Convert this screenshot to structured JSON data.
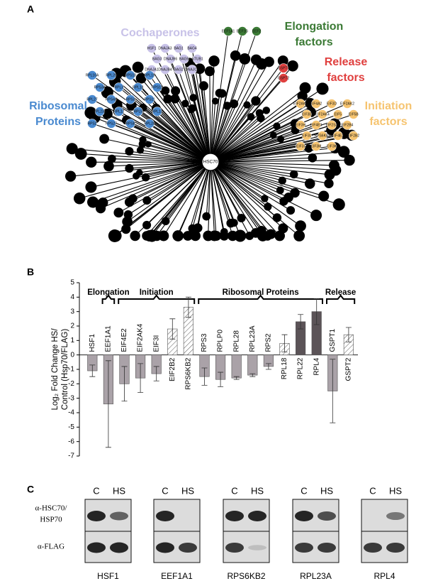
{
  "panel_a": {
    "letter": "A",
    "hub": "HSC70",
    "groups": [
      {
        "title": [
          "Cochaperones"
        ],
        "color": "#c8c2e8",
        "nodes": [
          "HSF1",
          "DNAJA3",
          "BAG1",
          "BAG4",
          "BAG3",
          "DNAJB6",
          "BAG5",
          "STUB1",
          "DNAJA1",
          "DNAJB4",
          "BAG2",
          "DNAJC7"
        ]
      },
      {
        "title": [
          "Elongation",
          "factors"
        ],
        "color": "#3b7a35",
        "nodes": [
          "EEF1A1",
          "EEF1G",
          "EEF2"
        ]
      },
      {
        "title": [
          "Release",
          "factors"
        ],
        "color": "#e0403f",
        "nodes": [
          "GSPT1",
          "GSPT2"
        ]
      },
      {
        "title": [
          "Initiation",
          "factors"
        ],
        "color": "#f6c470",
        "nodes": [
          "EIF2AK1",
          "EIF4A2",
          "EIF3D",
          "EIF2AK2",
          "EIF3E",
          "EIF2AK4",
          "EIF5",
          "EIF5B",
          "EIF3H",
          "EIF4E3",
          "EIF2S3",
          "EIF2B4",
          "EIF3L",
          "RPS6KB2",
          "EIF4E2",
          "EIF2B2",
          "EIF3I",
          "EIF3M",
          "EIF3K"
        ]
      },
      {
        "title": [
          "Ribosomal",
          "Proteins"
        ],
        "color": "#4a8ad0",
        "nodes": [
          "RPL10A",
          "RPL26",
          "RPS18",
          "RPL19",
          "RPS3A",
          "RPL3",
          "RPL18",
          "RPS15",
          "RPL27",
          "RPS4X",
          "RPS3",
          "RPS11",
          "RPL23A",
          "RPL12",
          "RPL5",
          "RPL13",
          "RPS2",
          "RPS27",
          "RPS8",
          "RPL28"
        ]
      }
    ]
  },
  "chart_data": {
    "type": "bar",
    "letter": "B",
    "y_label": [
      "Log₂ Fold Change HS/",
      "Control (Hsp70/FLAG)"
    ],
    "groups": [
      "Elongation",
      "Initiation",
      "Ribosomal Proteins",
      "Release"
    ],
    "categories": [
      "HSF1",
      "EEF1A1",
      "EIF4E2",
      "EIF2AK4",
      "EIF3I",
      "EIF2B2",
      "RPS6KB2",
      "RPS3",
      "RPLP0",
      "RPL28",
      "RPL23A",
      "RPS2",
      "RPL18",
      "RPL22",
      "RPL4",
      "GSPT1",
      "GSPT2"
    ],
    "values": [
      -1.1,
      -3.4,
      -2.0,
      -1.6,
      -1.3,
      1.8,
      3.3,
      -1.5,
      -1.7,
      -1.6,
      -1.4,
      -0.8,
      0.8,
      2.3,
      3.0,
      -2.5,
      1.4
    ],
    "errors": [
      0.4,
      3.0,
      1.2,
      1.0,
      0.5,
      0.7,
      0.7,
      0.6,
      0.5,
      0.1,
      0.1,
      0.2,
      0.6,
      0.5,
      0.9,
      2.2,
      0.5
    ],
    "colors": [
      "#aaa2a8",
      "#aaa2a8",
      "#aaa2a8",
      "#aaa2a8",
      "#aaa2a8",
      "#ffffff",
      "#ffffff",
      "#aaa2a8",
      "#aaa2a8",
      "#aaa2a8",
      "#aaa2a8",
      "#aaa2a8",
      "#ffffff",
      "#5b5357",
      "#5b5357",
      "#aaa2a8",
      "#ffffff"
    ],
    "hatched": [
      false,
      false,
      false,
      false,
      false,
      true,
      true,
      false,
      false,
      false,
      false,
      false,
      true,
      false,
      false,
      false,
      true
    ],
    "ylim": [
      -7,
      5
    ],
    "yticks": [
      -7,
      -6,
      -5,
      -4,
      -3,
      -2,
      -1,
      0,
      1,
      2,
      3,
      4,
      5
    ]
  },
  "panel_c": {
    "letter": "C",
    "lanes": [
      "C",
      "HS"
    ],
    "antibodies": [
      [
        "α-HSC70/",
        "HSP70"
      ],
      [
        "α-FLAG"
      ]
    ],
    "blots": [
      "HSF1",
      "EEF1A1",
      "RPS6KB2",
      "RPL23A",
      "RPL4"
    ]
  }
}
